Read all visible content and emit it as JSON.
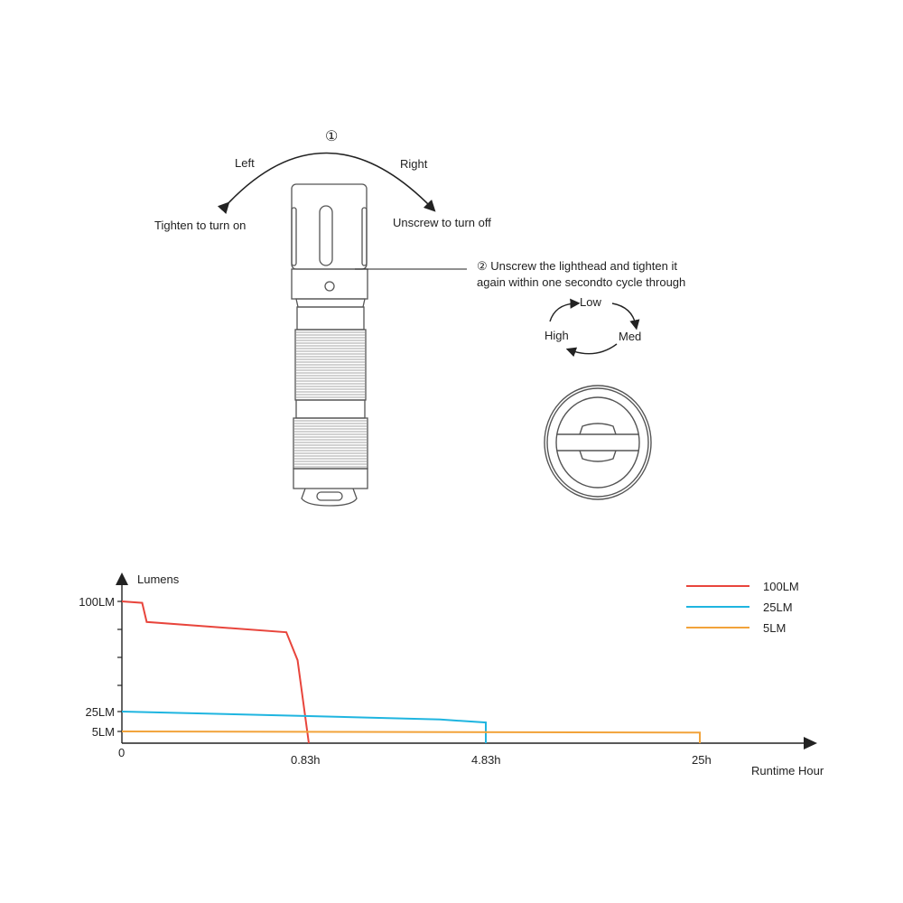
{
  "diagram": {
    "step1_marker": "①",
    "left_label": "Left",
    "right_label": "Right",
    "tighten_label": "Tighten to turn on",
    "unscrew_label": "Unscrew to turn off",
    "step2_line1": "② Unscrew the lighthead and tighten it",
    "step2_line2": "again within one secondto cycle through",
    "modes": {
      "low": "Low",
      "med": "Med",
      "high": "High"
    }
  },
  "chart_data": {
    "type": "line",
    "title": "",
    "ylabel": "Lumens",
    "xlabel": "Runtime Hour",
    "x_ticks": [
      "0",
      "0.83h",
      "4.83h",
      "25h"
    ],
    "y_ticks": [
      "5LM",
      "25LM",
      "100LM"
    ],
    "x_scale": "non-linear (ticks evenly placed at labeled values)",
    "legend_position": "top-right",
    "grid": false,
    "series": [
      {
        "name": "100LM",
        "color": "#e8453c",
        "points": [
          [
            0,
            100
          ],
          [
            0.09,
            99
          ],
          [
            0.11,
            86
          ],
          [
            0.73,
            79
          ],
          [
            0.78,
            60
          ],
          [
            0.83,
            0
          ]
        ]
      },
      {
        "name": "25LM",
        "color": "#1fb5e0",
        "points": [
          [
            0,
            25
          ],
          [
            0.83,
            20.5
          ],
          [
            3.8,
            17
          ],
          [
            4.83,
            14
          ],
          [
            4.83,
            0
          ]
        ]
      },
      {
        "name": "5LM",
        "color": "#f2a33a",
        "points": [
          [
            0,
            5
          ],
          [
            25,
            4.5
          ],
          [
            25,
            0
          ]
        ]
      }
    ]
  }
}
